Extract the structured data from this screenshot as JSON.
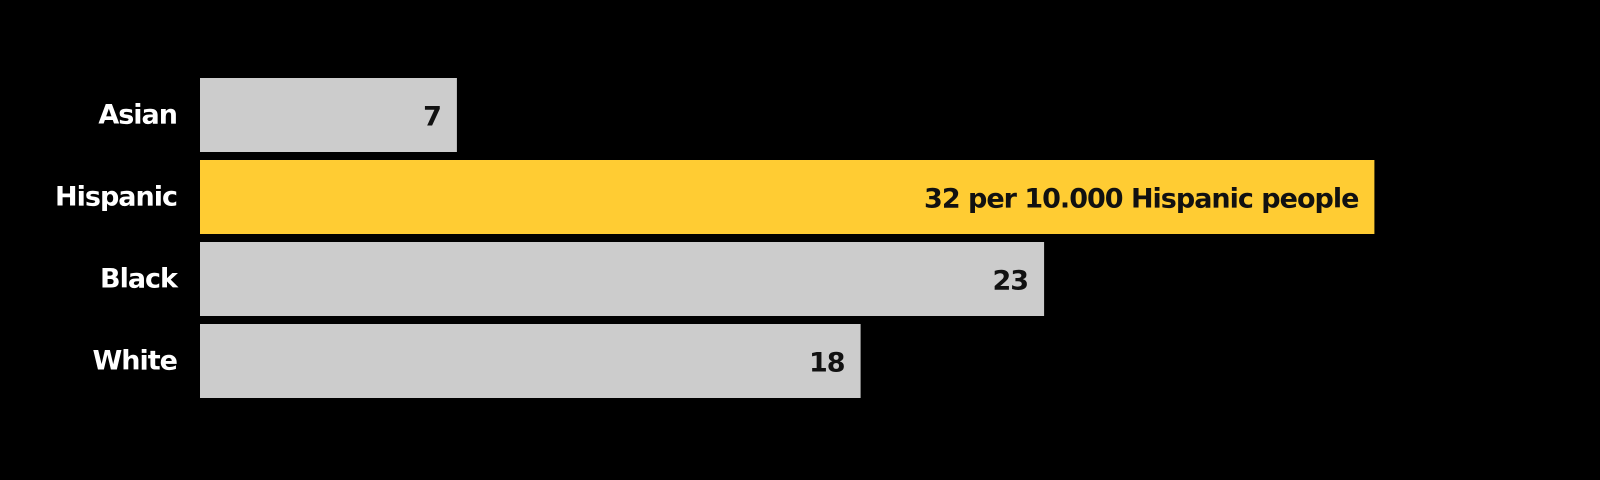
{
  "chart_data": {
    "type": "bar",
    "orientation": "horizontal",
    "categories": [
      "Asian",
      "Hispanic",
      "Black",
      "White"
    ],
    "values": [
      7,
      32,
      23,
      18
    ],
    "data_labels": [
      "7",
      "32 per 10.000 Hispanic people",
      "23",
      "18"
    ],
    "highlight": "Hispanic",
    "colors": {
      "background": "#000000",
      "bar_default": "#cccccc",
      "bar_highlight": "#ffcc33",
      "category_text": "#ffffff",
      "value_text": "#111111"
    },
    "title": "",
    "xlabel": "",
    "ylabel": "",
    "grid": false,
    "legend": "none"
  }
}
